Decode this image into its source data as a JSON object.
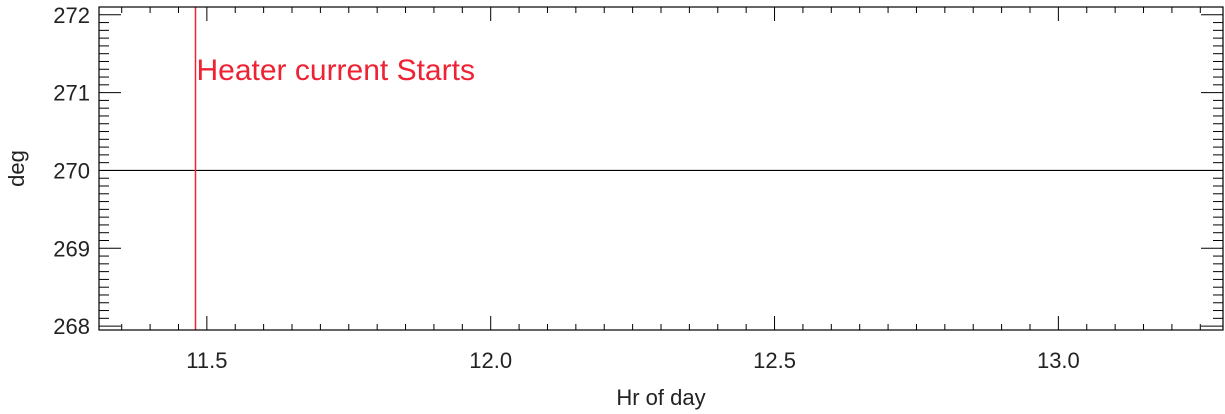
{
  "chart_data": {
    "type": "line",
    "title": "",
    "xlabel": "Hr of day",
    "ylabel": "deg",
    "xlim": [
      11.31,
      13.29
    ],
    "ylim": [
      267.95,
      272.1
    ],
    "xticks": [
      11.5,
      12.0,
      12.5,
      13.0
    ],
    "xtick_labels": [
      "11.5",
      "12.0",
      "12.5",
      "13.0"
    ],
    "yticks": [
      268,
      269,
      270,
      271,
      272
    ],
    "ytick_labels": [
      "268",
      "269",
      "270",
      "271",
      "272"
    ],
    "grid": false,
    "series": [
      {
        "x": [
          11.31,
          13.29
        ],
        "y": [
          270,
          270
        ],
        "color": "#000000"
      }
    ],
    "annotations": [
      {
        "type": "vline",
        "x": 11.48,
        "color": "#ee2233",
        "text": "Heater current Starts",
        "text_y": 271.15
      }
    ]
  }
}
